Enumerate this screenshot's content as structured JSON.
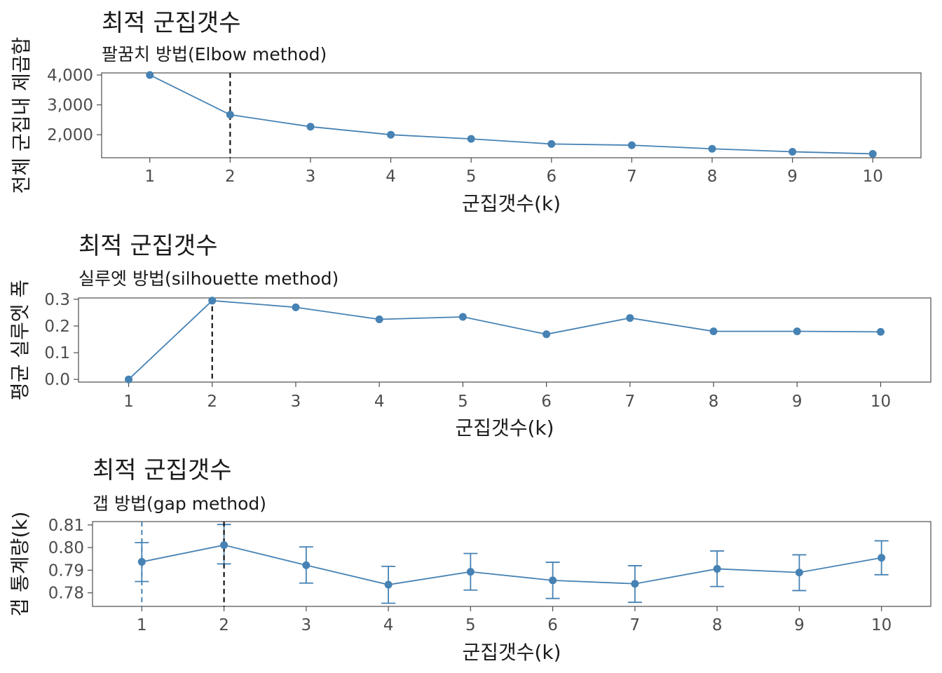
{
  "chart_data": [
    {
      "type": "line",
      "title": "최적 군집갯수",
      "subtitle": "팔꿈치 방법(Elbow method)",
      "xlabel": "군집갯수(k)",
      "ylabel": "전체 군집내 제곱합",
      "categories": [
        "1",
        "2",
        "3",
        "4",
        "5",
        "6",
        "7",
        "8",
        "9",
        "10"
      ],
      "x": [
        1,
        2,
        3,
        4,
        5,
        6,
        7,
        8,
        9,
        10
      ],
      "values": [
        4000,
        2670,
        2270,
        2000,
        1860,
        1690,
        1650,
        1530,
        1430,
        1360
      ],
      "y_ticks": [
        2000,
        3000,
        4000
      ],
      "y_tick_labels": [
        "2,000",
        "3,000",
        "4,000"
      ],
      "xlim": [
        0.4,
        10.6
      ],
      "ylim": [
        1230,
        4070
      ],
      "vline": 2,
      "color": "#4682B4",
      "grid": false
    },
    {
      "type": "line",
      "title": "최적 군집갯수",
      "subtitle": "실루엣 방법(silhouette method)",
      "xlabel": "군집갯수(k)",
      "ylabel": "평균 실루엣 폭",
      "categories": [
        "1",
        "2",
        "3",
        "4",
        "5",
        "6",
        "7",
        "8",
        "9",
        "10"
      ],
      "x": [
        1,
        2,
        3,
        4,
        5,
        6,
        7,
        8,
        9,
        10
      ],
      "values": [
        0.0,
        0.295,
        0.27,
        0.225,
        0.234,
        0.169,
        0.23,
        0.18,
        0.18,
        0.178
      ],
      "y_ticks": [
        0.0,
        0.1,
        0.2,
        0.3
      ],
      "y_tick_labels": [
        "0.0",
        "0.1",
        "0.2",
        "0.3"
      ],
      "xlim": [
        0.4,
        10.6
      ],
      "ylim": [
        -0.01,
        0.305
      ],
      "vline": 2,
      "color": "#4682B4",
      "grid": false
    },
    {
      "type": "line",
      "title": "최적 군집갯수",
      "subtitle": "갭 방법(gap method)",
      "xlabel": "군집갯수(k)",
      "ylabel": "갭 통계량(k)",
      "categories": [
        "1",
        "2",
        "3",
        "4",
        "5",
        "6",
        "7",
        "8",
        "9",
        "10"
      ],
      "x": [
        1,
        2,
        3,
        4,
        5,
        6,
        7,
        8,
        9,
        10
      ],
      "values": [
        0.7937,
        0.8011,
        0.7922,
        0.7836,
        0.7893,
        0.7855,
        0.784,
        0.7906,
        0.789,
        0.7955
      ],
      "error_low": [
        0.785,
        0.7928,
        0.7843,
        0.7754,
        0.7812,
        0.7775,
        0.7758,
        0.7828,
        0.781,
        0.788
      ],
      "error_high": [
        0.8022,
        0.8102,
        0.8003,
        0.7917,
        0.7974,
        0.7935,
        0.792,
        0.7985,
        0.7968,
        0.803
      ],
      "y_ticks": [
        0.78,
        0.79,
        0.8,
        0.81
      ],
      "y_tick_labels": [
        "0.78",
        "0.79",
        "0.80",
        "0.81"
      ],
      "xlim": [
        0.4,
        10.6
      ],
      "ylim": [
        0.774,
        0.8115
      ],
      "vline": 2,
      "vline_blue": 1,
      "color": "#4682B4",
      "grid": false
    }
  ]
}
